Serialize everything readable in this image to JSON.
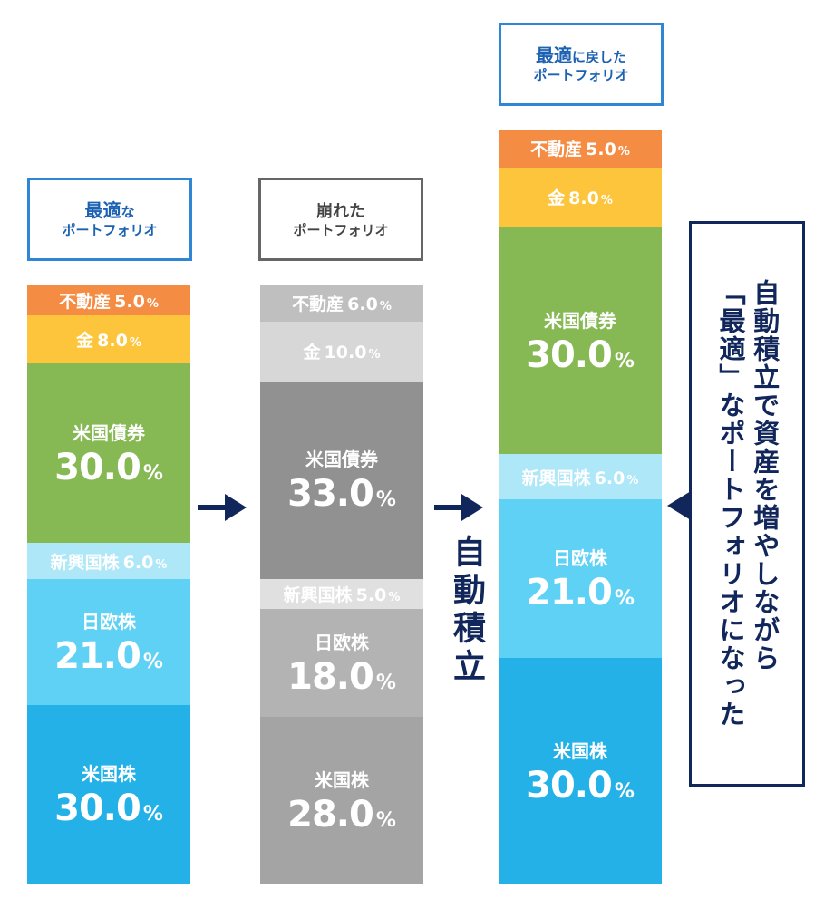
{
  "columns": [
    {
      "title_line1_a": "最適",
      "title_line1_b": "な",
      "title_line2": "ポートフォリオ",
      "segments": [
        {
          "name": "不動産",
          "value": "5.0",
          "unit": "%",
          "pct": 5.0,
          "color": "#f58c44"
        },
        {
          "name": "金",
          "value": "8.0",
          "unit": "%",
          "pct": 8.0,
          "color": "#fcc53c"
        },
        {
          "name": "米国債券",
          "value": "30.0",
          "unit": "%",
          "pct": 30.0,
          "color": "#86b854"
        },
        {
          "name": "新興国株",
          "value": "6.0",
          "unit": "%",
          "pct": 6.0,
          "color": "#aee7f8"
        },
        {
          "name": "日欧株",
          "value": "21.0",
          "unit": "%",
          "pct": 21.0,
          "color": "#5ed1f4"
        },
        {
          "name": "米国株",
          "value": "30.0",
          "unit": "%",
          "pct": 30.0,
          "color": "#23b1e7"
        }
      ]
    },
    {
      "title_line1_a": "崩れた",
      "title_line1_b": "",
      "title_line2": "ポートフォリオ",
      "segments": [
        {
          "name": "不動産",
          "value": "6.0",
          "unit": "%",
          "pct": 6.0,
          "color": "#bfbfbf"
        },
        {
          "name": "金",
          "value": "10.0",
          "unit": "%",
          "pct": 10.0,
          "color": "#d7d7d7"
        },
        {
          "name": "米国債券",
          "value": "33.0",
          "unit": "%",
          "pct": 33.0,
          "color": "#919191"
        },
        {
          "name": "新興国株",
          "value": "5.0",
          "unit": "%",
          "pct": 5.0,
          "color": "#e0e0e0"
        },
        {
          "name": "日欧株",
          "value": "18.0",
          "unit": "%",
          "pct": 18.0,
          "color": "#b3b3b3"
        },
        {
          "name": "米国株",
          "value": "28.0",
          "unit": "%",
          "pct": 28.0,
          "color": "#a4a4a4"
        }
      ]
    },
    {
      "title_line1_a": "最適",
      "title_line1_b": "に戻した",
      "title_line2": "ポートフォリオ",
      "segments": [
        {
          "name": "不動産",
          "value": "5.0",
          "unit": "%",
          "pct": 5.0,
          "color": "#f58c44"
        },
        {
          "name": "金",
          "value": "8.0",
          "unit": "%",
          "pct": 8.0,
          "color": "#fcc53c"
        },
        {
          "name": "米国債券",
          "value": "30.0",
          "unit": "%",
          "pct": 30.0,
          "color": "#86b854"
        },
        {
          "name": "新興国株",
          "value": "6.0",
          "unit": "%",
          "pct": 6.0,
          "color": "#aee7f8"
        },
        {
          "name": "日欧株",
          "value": "21.0",
          "unit": "%",
          "pct": 21.0,
          "color": "#5ed1f4"
        },
        {
          "name": "米国株",
          "value": "30.0",
          "unit": "%",
          "pct": 30.0,
          "color": "#23b1e7"
        }
      ]
    }
  ],
  "auto_label": "自動積立",
  "note_line1": "自動積立で資産を増やしながら",
  "note_line2": "「最適」なポートフォリオになった",
  "arrow_color": "#11265a"
}
